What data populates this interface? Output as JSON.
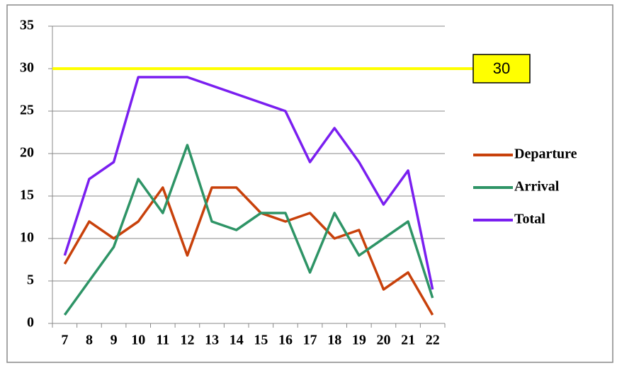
{
  "chart_data": {
    "type": "line",
    "categories": [
      "7",
      "8",
      "9",
      "10",
      "11",
      "12",
      "13",
      "14",
      "15",
      "16",
      "17",
      "18",
      "19",
      "20",
      "21",
      "22"
    ],
    "series": [
      {
        "name": "Departure",
        "color": "#c8410b",
        "values": [
          7,
          12,
          10,
          12,
          16,
          8,
          16,
          16,
          13,
          12,
          13,
          10,
          11,
          4,
          6,
          1
        ]
      },
      {
        "name": "Arrival",
        "color": "#2e9466",
        "values": [
          1,
          5,
          9,
          17,
          13,
          21,
          12,
          11,
          13,
          13,
          6,
          13,
          8,
          10,
          12,
          3
        ]
      },
      {
        "name": "Total",
        "color": "#7a1ff0",
        "values": [
          8,
          17,
          19,
          29,
          29,
          29,
          28,
          27,
          26,
          25,
          19,
          23,
          19,
          14,
          18,
          4
        ]
      }
    ],
    "ylim": [
      0,
      35
    ],
    "yticks": [
      0,
      5,
      10,
      15,
      20,
      25,
      30,
      35
    ],
    "grid": true,
    "reference_line": 30,
    "reference_color": "#ffff00",
    "legend": "right"
  }
}
